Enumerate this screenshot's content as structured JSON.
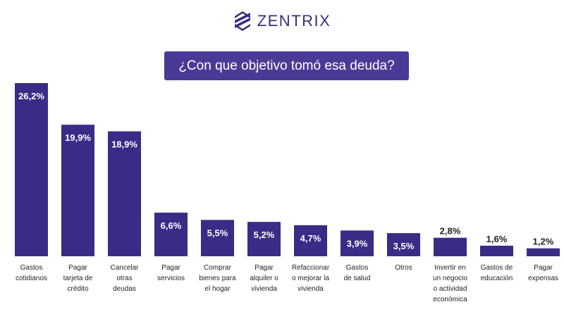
{
  "brand": {
    "name": "ZENTRIX",
    "logo_icon": "zentrix-stripes-logo"
  },
  "colors": {
    "bar": "#3a2b86",
    "title_bg": "#4b3a95",
    "label_dark": "#222222",
    "label_light": "#ffffff"
  },
  "chart_data": {
    "type": "bar",
    "title": "¿Con que objetivo tomó esa deuda?",
    "xlabel": "",
    "ylabel": "",
    "ylim": [
      0,
      27
    ],
    "grid": false,
    "legend": "none",
    "categories": [
      [
        "Gastos",
        "cotidianos"
      ],
      [
        "Pagar",
        "tarjeta de",
        "crédito"
      ],
      [
        "Cancelar",
        "otras",
        "deudas"
      ],
      [
        "Pagar",
        "servicios"
      ],
      [
        "Comprar",
        "bienes para",
        "el hogar"
      ],
      [
        "Pagar",
        "alquiler o",
        "vivienda"
      ],
      [
        "Refaccionar",
        "o mejorar la",
        "vivienda"
      ],
      [
        "Gastos",
        "de salud"
      ],
      [
        "Otros"
      ],
      [
        "Invertir en",
        "un negocio",
        "o actividad",
        "económica"
      ],
      [
        "Gastos de",
        "educación"
      ],
      [
        "Pagar",
        "expensas"
      ]
    ],
    "values": [
      26.2,
      19.9,
      18.9,
      6.6,
      5.5,
      5.2,
      4.7,
      3.9,
      3.5,
      2.8,
      1.6,
      1.2
    ],
    "value_labels": [
      "26,2%",
      "19,9%",
      "18,9%",
      "6,6%",
      "5,5%",
      "5,2%",
      "4,7%",
      "3,9%",
      "3,5%",
      "2,8%",
      "1,6%",
      "1,2%"
    ]
  }
}
